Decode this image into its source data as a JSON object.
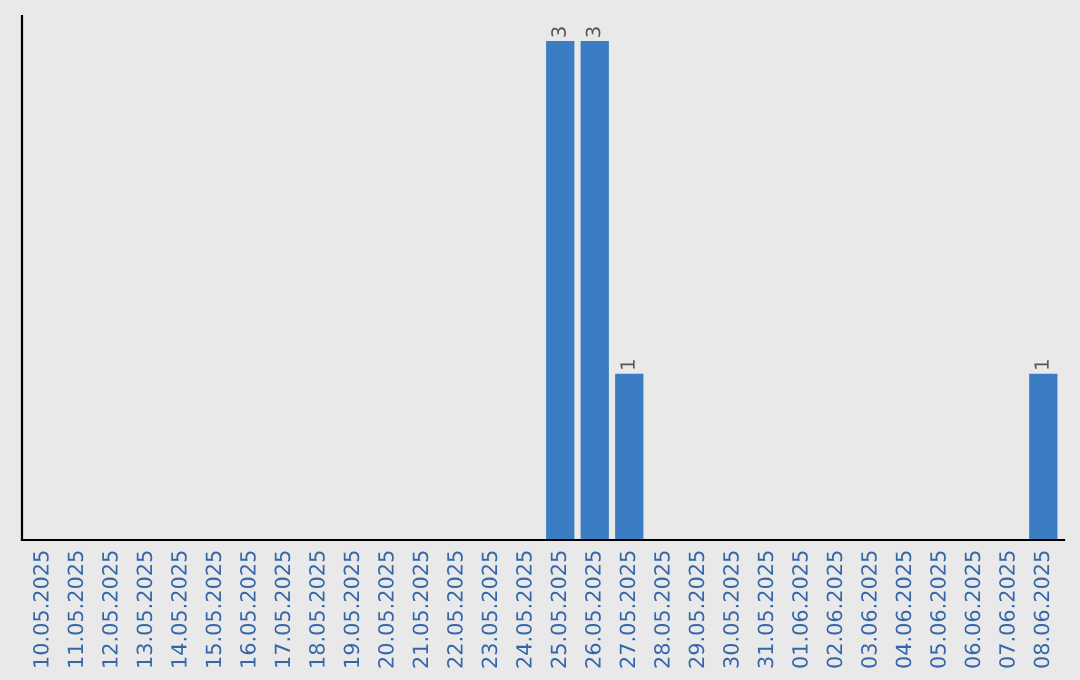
{
  "chart_data": {
    "type": "bar",
    "categories": [
      "10.05.2025",
      "11.05.2025",
      "12.05.2025",
      "13.05.2025",
      "14.05.2025",
      "15.05.2025",
      "16.05.2025",
      "17.05.2025",
      "18.05.2025",
      "19.05.2025",
      "20.05.2025",
      "21.05.2025",
      "22.05.2025",
      "23.05.2025",
      "24.05.2025",
      "25.05.2025",
      "26.05.2025",
      "27.05.2025",
      "28.05.2025",
      "29.05.2025",
      "30.05.2025",
      "31.05.2025",
      "01.06.2025",
      "02.06.2025",
      "03.06.2025",
      "04.06.2025",
      "05.06.2025",
      "06.06.2025",
      "07.06.2025",
      "08.06.2025"
    ],
    "values": [
      null,
      null,
      null,
      null,
      null,
      null,
      null,
      null,
      null,
      null,
      null,
      null,
      null,
      null,
      null,
      3,
      3,
      1,
      null,
      null,
      null,
      null,
      null,
      null,
      null,
      null,
      null,
      null,
      null,
      1
    ],
    "data_labels": true,
    "color": "#3b7dc3",
    "ylim": [
      0,
      3.15
    ],
    "tick_labels": "x",
    "grid": false,
    "legend": false
  }
}
